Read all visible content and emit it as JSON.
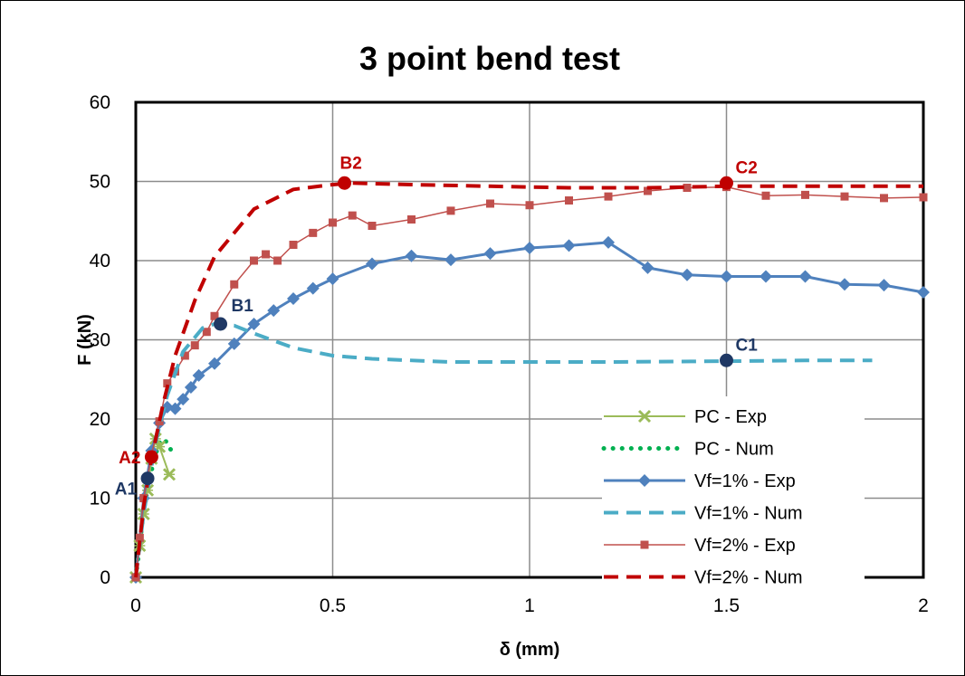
{
  "chart_data": {
    "type": "line",
    "title": "3 point bend test",
    "xlabel": "δ (mm)",
    "ylabel": "F (kN)",
    "xlim": [
      0,
      2
    ],
    "ylim": [
      0,
      60
    ],
    "xticks": [
      "0",
      "0.5",
      "1",
      "1.5",
      "2"
    ],
    "yticks": [
      "0",
      "10",
      "20",
      "30",
      "40",
      "50",
      "60"
    ],
    "grid": true,
    "legend_position": "bottom-right",
    "series": [
      {
        "name": "PC - Exp",
        "color": "#9bbb59",
        "style": "solid-x-markers",
        "points": [
          [
            0,
            0
          ],
          [
            0.01,
            4
          ],
          [
            0.02,
            8
          ],
          [
            0.03,
            11
          ],
          [
            0.04,
            15
          ],
          [
            0.05,
            17.5
          ],
          [
            0.06,
            16.5
          ],
          [
            0.085,
            13
          ]
        ]
      },
      {
        "name": "PC - Num",
        "color": "#00b050",
        "style": "dotted",
        "points": [
          [
            0,
            0
          ],
          [
            0.01,
            4
          ],
          [
            0.02,
            8.5
          ],
          [
            0.035,
            12.5
          ],
          [
            0.05,
            15.5
          ],
          [
            0.06,
            17
          ],
          [
            0.07,
            17.5
          ],
          [
            0.08,
            17
          ],
          [
            0.09,
            16
          ],
          [
            0.1,
            15.3
          ]
        ]
      },
      {
        "name": "Vf=1% - Exp",
        "color": "#4f81bd",
        "style": "solid-diamond-markers",
        "points": [
          [
            0,
            0
          ],
          [
            0.02,
            10
          ],
          [
            0.04,
            16
          ],
          [
            0.06,
            19.5
          ],
          [
            0.08,
            21.5
          ],
          [
            0.1,
            21.3
          ],
          [
            0.12,
            22.5
          ],
          [
            0.14,
            24
          ],
          [
            0.16,
            25.5
          ],
          [
            0.2,
            27
          ],
          [
            0.25,
            29.5
          ],
          [
            0.3,
            32
          ],
          [
            0.35,
            33.7
          ],
          [
            0.4,
            35.2
          ],
          [
            0.45,
            36.5
          ],
          [
            0.5,
            37.7
          ],
          [
            0.6,
            39.6
          ],
          [
            0.7,
            40.6
          ],
          [
            0.8,
            40.1
          ],
          [
            0.9,
            40.9
          ],
          [
            1.0,
            41.6
          ],
          [
            1.1,
            41.9
          ],
          [
            1.2,
            42.3
          ],
          [
            1.3,
            39.1
          ],
          [
            1.4,
            38.2
          ],
          [
            1.5,
            38
          ],
          [
            1.6,
            38
          ],
          [
            1.7,
            38
          ],
          [
            1.8,
            37
          ],
          [
            1.9,
            36.9
          ],
          [
            2.0,
            36
          ]
        ]
      },
      {
        "name": "Vf=1% - Num",
        "color": "#4bacc6",
        "style": "dashed",
        "points": [
          [
            0,
            0
          ],
          [
            0.02,
            8
          ],
          [
            0.05,
            17
          ],
          [
            0.08,
            23
          ],
          [
            0.12,
            28.5
          ],
          [
            0.17,
            31.5
          ],
          [
            0.2,
            32
          ],
          [
            0.25,
            31.8
          ],
          [
            0.3,
            30.8
          ],
          [
            0.4,
            29
          ],
          [
            0.5,
            28
          ],
          [
            0.6,
            27.6
          ],
          [
            0.8,
            27.2
          ],
          [
            1.0,
            27.2
          ],
          [
            1.2,
            27.2
          ],
          [
            1.5,
            27.3
          ],
          [
            1.7,
            27.4
          ],
          [
            1.87,
            27.4
          ]
        ]
      },
      {
        "name": "Vf=2% - Exp",
        "color": "#c0504d",
        "style": "solid-square-markers",
        "points": [
          [
            0,
            0
          ],
          [
            0.01,
            5
          ],
          [
            0.02,
            10
          ],
          [
            0.04,
            15.5
          ],
          [
            0.06,
            19.7
          ],
          [
            0.08,
            24.5
          ],
          [
            0.1,
            26
          ],
          [
            0.125,
            28
          ],
          [
            0.15,
            29.3
          ],
          [
            0.18,
            31
          ],
          [
            0.2,
            33
          ],
          [
            0.25,
            37
          ],
          [
            0.3,
            40
          ],
          [
            0.33,
            40.8
          ],
          [
            0.36,
            40
          ],
          [
            0.4,
            42
          ],
          [
            0.45,
            43.5
          ],
          [
            0.5,
            44.8
          ],
          [
            0.55,
            45.7
          ],
          [
            0.6,
            44.4
          ],
          [
            0.7,
            45.2
          ],
          [
            0.8,
            46.3
          ],
          [
            0.9,
            47.2
          ],
          [
            1.0,
            47
          ],
          [
            1.1,
            47.6
          ],
          [
            1.2,
            48.1
          ],
          [
            1.3,
            48.8
          ],
          [
            1.4,
            49.2
          ],
          [
            1.5,
            49.3
          ],
          [
            1.6,
            48.2
          ],
          [
            1.7,
            48.3
          ],
          [
            1.8,
            48.1
          ],
          [
            1.9,
            47.9
          ],
          [
            2.0,
            48
          ]
        ]
      },
      {
        "name": "Vf=2% - Num",
        "color": "#c00000",
        "style": "dashed",
        "points": [
          [
            0,
            0
          ],
          [
            0.02,
            9
          ],
          [
            0.04,
            15
          ],
          [
            0.07,
            22
          ],
          [
            0.1,
            28
          ],
          [
            0.15,
            35
          ],
          [
            0.2,
            40.5
          ],
          [
            0.3,
            46.5
          ],
          [
            0.4,
            49
          ],
          [
            0.5,
            49.6
          ],
          [
            0.55,
            49.8
          ],
          [
            0.7,
            49.6
          ],
          [
            0.9,
            49.4
          ],
          [
            1.1,
            49.2
          ],
          [
            1.3,
            49.2
          ],
          [
            1.5,
            49.4
          ],
          [
            1.7,
            49.4
          ],
          [
            1.9,
            49.4
          ],
          [
            2.0,
            49.4
          ]
        ]
      }
    ],
    "annotations": [
      {
        "label": "A1",
        "x": 0.03,
        "y": 12.5,
        "color": "#1f3864",
        "label_pos": "left"
      },
      {
        "label": "A2",
        "x": 0.04,
        "y": 15.2,
        "color": "#c00000",
        "label_pos": "left"
      },
      {
        "label": "B1",
        "x": 0.215,
        "y": 32,
        "color": "#1f3864",
        "label_pos": "above-right"
      },
      {
        "label": "B2",
        "x": 0.53,
        "y": 49.8,
        "color": "#c00000",
        "label_pos": "above"
      },
      {
        "label": "C1",
        "x": 1.5,
        "y": 27.4,
        "color": "#1f3864",
        "label_pos": "above-right"
      },
      {
        "label": "C2",
        "x": 1.5,
        "y": 49.8,
        "color": "#c00000",
        "label_pos": "above-right"
      }
    ]
  }
}
